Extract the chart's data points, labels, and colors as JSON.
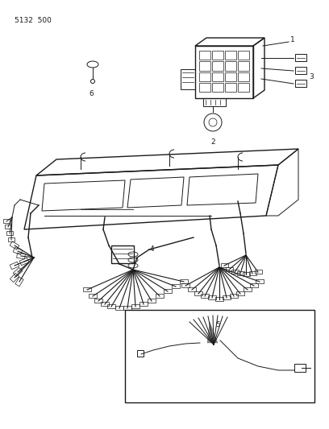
{
  "title_code": "5132  500",
  "bg_color": "#ffffff",
  "line_color": "#1a1a1a",
  "fig_width": 4.08,
  "fig_height": 5.33,
  "dpi": 100
}
